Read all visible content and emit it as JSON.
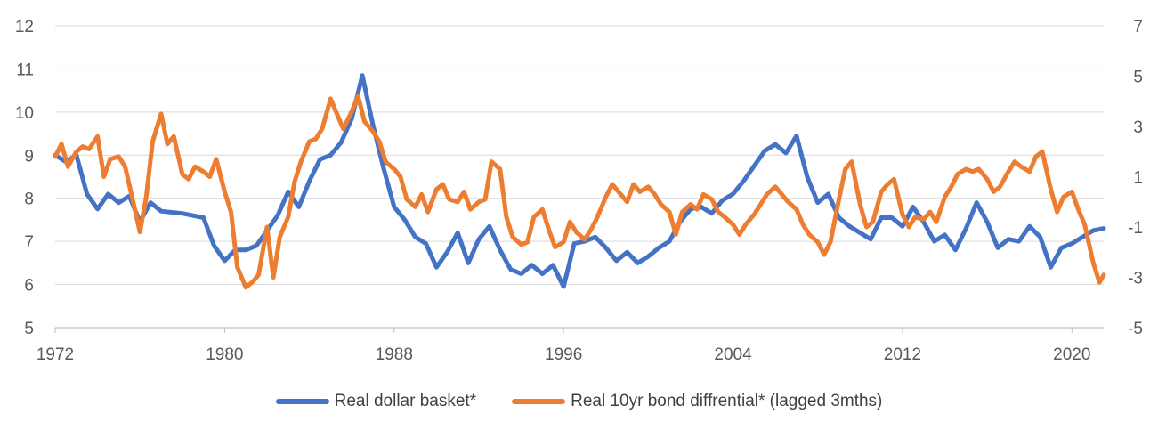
{
  "chart_data": {
    "type": "line",
    "title": "",
    "xlabel": "",
    "ylabel": "",
    "x_ticks": [
      "1972",
      "1980",
      "1988",
      "1996",
      "2004",
      "2012",
      "2020"
    ],
    "xlim": [
      1972,
      2021.5
    ],
    "y_left": {
      "lim": [
        5,
        12
      ],
      "ticks": [
        "5",
        "6",
        "7",
        "8",
        "9",
        "10",
        "11",
        "12"
      ]
    },
    "y_right": {
      "lim": [
        -5,
        7
      ],
      "ticks": [
        "-5",
        "-3",
        "-1",
        "1",
        "3",
        "5",
        "7"
      ]
    },
    "grid": true,
    "legend_position": "bottom",
    "series": [
      {
        "name": "Real dollar basket*",
        "axis": "left",
        "color": "#4472C4",
        "points": [
          [
            1972.0,
            9.0
          ],
          [
            1972.5,
            8.85
          ],
          [
            1973.0,
            9.0
          ],
          [
            1973.5,
            8.1
          ],
          [
            1974.0,
            7.75
          ],
          [
            1974.5,
            8.1
          ],
          [
            1975.0,
            7.9
          ],
          [
            1975.5,
            8.05
          ],
          [
            1976.0,
            7.45
          ],
          [
            1976.5,
            7.9
          ],
          [
            1977.0,
            7.7
          ],
          [
            1978.0,
            7.65
          ],
          [
            1979.0,
            7.55
          ],
          [
            1979.5,
            6.9
          ],
          [
            1980.0,
            6.55
          ],
          [
            1980.5,
            6.8
          ],
          [
            1981.0,
            6.8
          ],
          [
            1981.5,
            6.9
          ],
          [
            1982.0,
            7.25
          ],
          [
            1982.5,
            7.6
          ],
          [
            1983.0,
            8.15
          ],
          [
            1983.5,
            7.8
          ],
          [
            1984.0,
            8.4
          ],
          [
            1984.5,
            8.9
          ],
          [
            1985.0,
            9.0
          ],
          [
            1985.5,
            9.3
          ],
          [
            1986.0,
            9.85
          ],
          [
            1986.5,
            10.85
          ],
          [
            1987.0,
            9.7
          ],
          [
            1987.5,
            8.7
          ],
          [
            1988.0,
            7.8
          ],
          [
            1988.5,
            7.5
          ],
          [
            1989.0,
            7.1
          ],
          [
            1989.5,
            6.95
          ],
          [
            1990.0,
            6.4
          ],
          [
            1990.5,
            6.75
          ],
          [
            1991.0,
            7.2
          ],
          [
            1991.5,
            6.5
          ],
          [
            1992.0,
            7.05
          ],
          [
            1992.5,
            7.35
          ],
          [
            1993.0,
            6.8
          ],
          [
            1993.5,
            6.35
          ],
          [
            1994.0,
            6.25
          ],
          [
            1994.5,
            6.45
          ],
          [
            1995.0,
            6.25
          ],
          [
            1995.5,
            6.45
          ],
          [
            1996.0,
            5.95
          ],
          [
            1996.5,
            6.95
          ],
          [
            1997.0,
            7.0
          ],
          [
            1997.5,
            7.1
          ],
          [
            1998.0,
            6.85
          ],
          [
            1998.5,
            6.55
          ],
          [
            1999.0,
            6.75
          ],
          [
            1999.5,
            6.5
          ],
          [
            2000.0,
            6.65
          ],
          [
            2000.5,
            6.85
          ],
          [
            2001.0,
            7.0
          ],
          [
            2001.5,
            7.45
          ],
          [
            2002.0,
            7.75
          ],
          [
            2002.5,
            7.8
          ],
          [
            2003.0,
            7.65
          ],
          [
            2003.5,
            7.95
          ],
          [
            2004.0,
            8.1
          ],
          [
            2004.5,
            8.4
          ],
          [
            2005.0,
            8.75
          ],
          [
            2005.5,
            9.1
          ],
          [
            2006.0,
            9.25
          ],
          [
            2006.5,
            9.05
          ],
          [
            2007.0,
            9.45
          ],
          [
            2007.5,
            8.5
          ],
          [
            2008.0,
            7.9
          ],
          [
            2008.5,
            8.1
          ],
          [
            2009.0,
            7.55
          ],
          [
            2009.5,
            7.35
          ],
          [
            2010.0,
            7.2
          ],
          [
            2010.5,
            7.05
          ],
          [
            2011.0,
            7.55
          ],
          [
            2011.5,
            7.55
          ],
          [
            2012.0,
            7.35
          ],
          [
            2012.5,
            7.8
          ],
          [
            2013.0,
            7.45
          ],
          [
            2013.5,
            7.0
          ],
          [
            2014.0,
            7.15
          ],
          [
            2014.5,
            6.8
          ],
          [
            2015.0,
            7.3
          ],
          [
            2015.5,
            7.9
          ],
          [
            2016.0,
            7.45
          ],
          [
            2016.5,
            6.85
          ],
          [
            2017.0,
            7.05
          ],
          [
            2017.5,
            7.0
          ],
          [
            2018.0,
            7.35
          ],
          [
            2018.5,
            7.1
          ],
          [
            2019.0,
            6.4
          ],
          [
            2019.5,
            6.85
          ],
          [
            2020.0,
            6.95
          ],
          [
            2020.5,
            7.1
          ],
          [
            2021.0,
            7.25
          ],
          [
            2021.5,
            7.3
          ]
        ]
      },
      {
        "name": "Real 10yr bond diffrential* (lagged 3mths)",
        "axis": "right",
        "color": "#ED7D31",
        "points": [
          [
            1972.0,
            1.8
          ],
          [
            1972.3,
            2.3
          ],
          [
            1972.6,
            1.4
          ],
          [
            1973.0,
            2.0
          ],
          [
            1973.3,
            2.2
          ],
          [
            1973.6,
            2.1
          ],
          [
            1974.0,
            2.6
          ],
          [
            1974.3,
            1.0
          ],
          [
            1974.6,
            1.7
          ],
          [
            1975.0,
            1.8
          ],
          [
            1975.3,
            1.4
          ],
          [
            1975.6,
            0.3
          ],
          [
            1976.0,
            -1.2
          ],
          [
            1976.3,
            0.2
          ],
          [
            1976.6,
            2.4
          ],
          [
            1977.0,
            3.5
          ],
          [
            1977.3,
            2.3
          ],
          [
            1977.6,
            2.6
          ],
          [
            1978.0,
            1.1
          ],
          [
            1978.3,
            0.9
          ],
          [
            1978.6,
            1.4
          ],
          [
            1979.0,
            1.2
          ],
          [
            1979.3,
            1.0
          ],
          [
            1979.6,
            1.7
          ],
          [
            1980.0,
            0.4
          ],
          [
            1980.3,
            -0.4
          ],
          [
            1980.6,
            -2.6
          ],
          [
            1981.0,
            -3.4
          ],
          [
            1981.3,
            -3.2
          ],
          [
            1981.6,
            -2.9
          ],
          [
            1982.0,
            -1.0
          ],
          [
            1982.3,
            -3.0
          ],
          [
            1982.6,
            -1.4
          ],
          [
            1983.0,
            -0.6
          ],
          [
            1983.3,
            0.8
          ],
          [
            1983.6,
            1.6
          ],
          [
            1984.0,
            2.4
          ],
          [
            1984.3,
            2.5
          ],
          [
            1984.6,
            2.9
          ],
          [
            1985.0,
            4.1
          ],
          [
            1985.3,
            3.5
          ],
          [
            1985.6,
            2.9
          ],
          [
            1986.0,
            3.6
          ],
          [
            1986.3,
            4.2
          ],
          [
            1986.6,
            3.2
          ],
          [
            1987.0,
            2.8
          ],
          [
            1987.3,
            2.4
          ],
          [
            1987.6,
            1.6
          ],
          [
            1988.0,
            1.3
          ],
          [
            1988.3,
            1.0
          ],
          [
            1988.6,
            0.1
          ],
          [
            1989.0,
            -0.2
          ],
          [
            1989.3,
            0.3
          ],
          [
            1989.6,
            -0.4
          ],
          [
            1990.0,
            0.5
          ],
          [
            1990.3,
            0.7
          ],
          [
            1990.6,
            0.1
          ],
          [
            1991.0,
            0.0
          ],
          [
            1991.3,
            0.4
          ],
          [
            1991.6,
            -0.3
          ],
          [
            1992.0,
            0.0
          ],
          [
            1992.3,
            0.1
          ],
          [
            1992.6,
            1.6
          ],
          [
            1993.0,
            1.3
          ],
          [
            1993.3,
            -0.6
          ],
          [
            1993.6,
            -1.4
          ],
          [
            1994.0,
            -1.7
          ],
          [
            1994.3,
            -1.6
          ],
          [
            1994.6,
            -0.6
          ],
          [
            1995.0,
            -0.3
          ],
          [
            1995.3,
            -1.1
          ],
          [
            1995.6,
            -1.8
          ],
          [
            1996.0,
            -1.6
          ],
          [
            1996.3,
            -0.8
          ],
          [
            1996.6,
            -1.2
          ],
          [
            1997.0,
            -1.5
          ],
          [
            1997.3,
            -1.1
          ],
          [
            1997.6,
            -0.6
          ],
          [
            1998.0,
            0.2
          ],
          [
            1998.3,
            0.7
          ],
          [
            1998.6,
            0.4
          ],
          [
            1999.0,
            0.0
          ],
          [
            1999.3,
            0.7
          ],
          [
            1999.6,
            0.4
          ],
          [
            2000.0,
            0.6
          ],
          [
            2000.3,
            0.3
          ],
          [
            2000.6,
            -0.1
          ],
          [
            2001.0,
            -0.4
          ],
          [
            2001.3,
            -1.3
          ],
          [
            2001.6,
            -0.4
          ],
          [
            2002.0,
            -0.1
          ],
          [
            2002.3,
            -0.3
          ],
          [
            2002.6,
            0.3
          ],
          [
            2003.0,
            0.1
          ],
          [
            2003.3,
            -0.4
          ],
          [
            2003.6,
            -0.6
          ],
          [
            2004.0,
            -0.9
          ],
          [
            2004.3,
            -1.3
          ],
          [
            2004.6,
            -0.9
          ],
          [
            2005.0,
            -0.5
          ],
          [
            2005.3,
            -0.1
          ],
          [
            2005.6,
            0.3
          ],
          [
            2006.0,
            0.6
          ],
          [
            2006.3,
            0.3
          ],
          [
            2006.6,
            0.0
          ],
          [
            2007.0,
            -0.3
          ],
          [
            2007.3,
            -0.9
          ],
          [
            2007.6,
            -1.3
          ],
          [
            2008.0,
            -1.6
          ],
          [
            2008.3,
            -2.1
          ],
          [
            2008.6,
            -1.6
          ],
          [
            2009.0,
            0.1
          ],
          [
            2009.3,
            1.3
          ],
          [
            2009.6,
            1.6
          ],
          [
            2010.0,
            -0.1
          ],
          [
            2010.3,
            -1.0
          ],
          [
            2010.6,
            -0.8
          ],
          [
            2011.0,
            0.4
          ],
          [
            2011.3,
            0.7
          ],
          [
            2011.6,
            0.9
          ],
          [
            2012.0,
            -0.5
          ],
          [
            2012.3,
            -1.0
          ],
          [
            2012.6,
            -0.6
          ],
          [
            2013.0,
            -0.7
          ],
          [
            2013.3,
            -0.4
          ],
          [
            2013.6,
            -0.8
          ],
          [
            2014.0,
            0.2
          ],
          [
            2014.3,
            0.6
          ],
          [
            2014.6,
            1.1
          ],
          [
            2015.0,
            1.3
          ],
          [
            2015.3,
            1.2
          ],
          [
            2015.6,
            1.3
          ],
          [
            2016.0,
            0.9
          ],
          [
            2016.3,
            0.4
          ],
          [
            2016.6,
            0.6
          ],
          [
            2017.0,
            1.2
          ],
          [
            2017.3,
            1.6
          ],
          [
            2017.6,
            1.4
          ],
          [
            2018.0,
            1.2
          ],
          [
            2018.3,
            1.8
          ],
          [
            2018.6,
            2.0
          ],
          [
            2019.0,
            0.5
          ],
          [
            2019.3,
            -0.4
          ],
          [
            2019.6,
            0.2
          ],
          [
            2020.0,
            0.4
          ],
          [
            2020.3,
            -0.3
          ],
          [
            2020.6,
            -0.9
          ],
          [
            2021.0,
            -2.4
          ],
          [
            2021.3,
            -3.2
          ],
          [
            2021.5,
            -2.9
          ]
        ]
      }
    ]
  }
}
